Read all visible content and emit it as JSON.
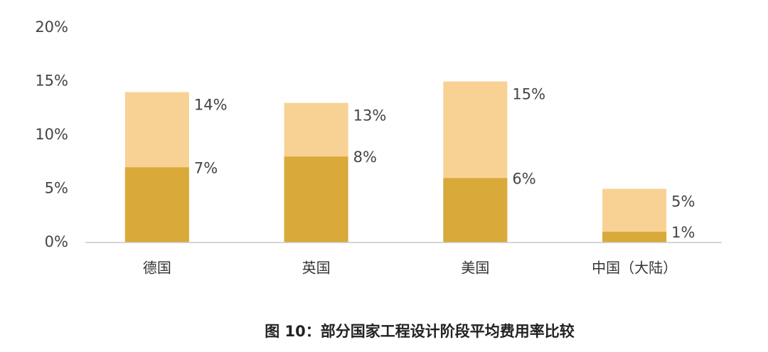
{
  "chart_data": {
    "type": "bar",
    "title": "图 10：部分国家工程设计阶段平均费用率比较",
    "categories": [
      "德国",
      "英国",
      "美国",
      "中国（大陆）"
    ],
    "series": [
      {
        "color": "#f8d294",
        "values": [
          14,
          13,
          15,
          5
        ],
        "value_labels": [
          "14%",
          "13%",
          "15%",
          "5%"
        ]
      },
      {
        "color": "#d9a93a",
        "values": [
          7,
          8,
          6,
          1
        ],
        "value_labels": [
          "7%",
          "8%",
          "6%",
          "1%"
        ]
      }
    ],
    "ylim": [
      0,
      20
    ],
    "yticks": [
      {
        "value": 0,
        "label": "0%"
      },
      {
        "value": 5,
        "label": "5%"
      },
      {
        "value": 10,
        "label": "10%"
      },
      {
        "value": 15,
        "label": "15%"
      },
      {
        "value": 20,
        "label": "20%"
      }
    ],
    "grid": false
  }
}
